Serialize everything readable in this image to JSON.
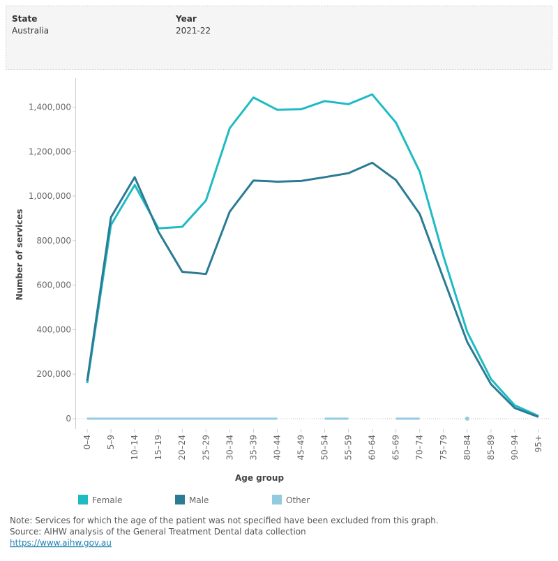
{
  "filters": [
    {
      "label": "State",
      "value": "Australia"
    },
    {
      "label": "Year",
      "value": "2021-22"
    }
  ],
  "chart_data": {
    "type": "line",
    "x_label": "Age group",
    "y_label": "Number of services",
    "categories": [
      "0–4",
      "5–9",
      "10–14",
      "15–19",
      "20–24",
      "25–29",
      "30–34",
      "35–39",
      "40–44",
      "45–49",
      "50–54",
      "55–59",
      "60–64",
      "65–69",
      "70–74",
      "75–79",
      "80–84",
      "85–89",
      "90–94",
      "95+"
    ],
    "series": [
      {
        "name": "Female",
        "color": "#1ebbc4",
        "values": [
          160000,
          870000,
          1050000,
          855000,
          862000,
          980000,
          1305000,
          1443000,
          1388000,
          1390000,
          1427000,
          1413000,
          1457000,
          1330000,
          1110000,
          730000,
          390000,
          178000,
          60000,
          12000
        ]
      },
      {
        "name": "Male",
        "color": "#2a7b93",
        "values": [
          170000,
          905000,
          1085000,
          840000,
          660000,
          650000,
          930000,
          1070000,
          1065000,
          1068000,
          1085000,
          1103000,
          1150000,
          1072000,
          920000,
          630000,
          345000,
          155000,
          48000,
          8000
        ]
      },
      {
        "name": "Other",
        "color": "#92cbe0",
        "values": [
          0,
          0,
          0,
          0,
          0,
          0,
          0,
          0,
          0,
          null,
          0,
          0,
          null,
          0,
          0,
          null,
          0,
          null,
          null,
          null
        ]
      }
    ],
    "ylim": [
      -47000,
      1530000
    ],
    "yticks": [
      0,
      {
        "value": 200000,
        "label": "200,000"
      },
      {
        "value": 400000,
        "label": "400,000"
      },
      {
        "value": 600000,
        "label": "600,000"
      },
      {
        "value": 800000,
        "label": "800,000"
      },
      {
        "value": 1000000,
        "label": "1,000,000"
      },
      {
        "value": 1200000,
        "label": "1,200,000"
      },
      {
        "value": 1400000,
        "label": "1,400,000"
      }
    ],
    "zero_line": true
  },
  "notes": [
    "Note: Services for which the age of the patient was not specified have been excluded from this graph.",
    "Source: AIHW analysis of the General Treatment Dental data collection"
  ],
  "link": "https://www.aihw.gov.au"
}
